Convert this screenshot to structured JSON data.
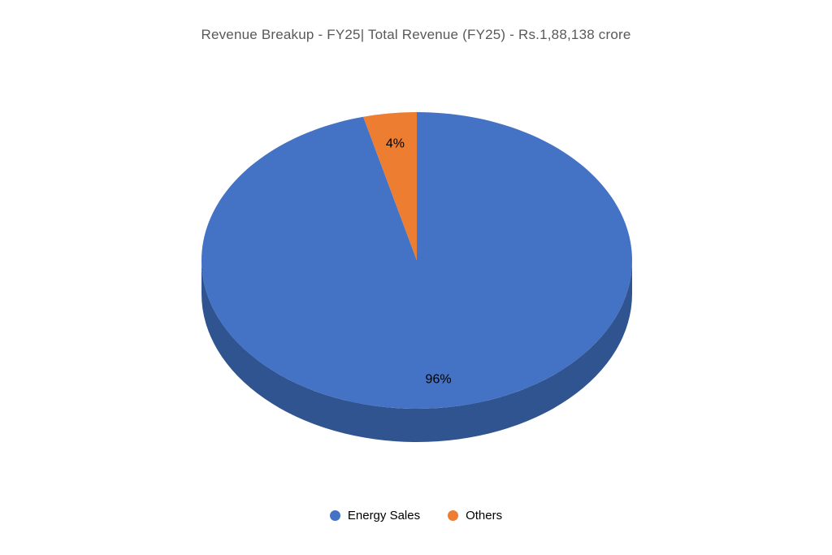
{
  "page": {
    "background": "#FFFFFF"
  },
  "chart_data": {
    "type": "pie",
    "style": "3d",
    "title": "Revenue Breakup - FY25| Total Revenue (FY25) - Rs.1,88,138 crore",
    "title_color": "#595959",
    "categories": [
      "Energy Sales",
      "Others"
    ],
    "values": [
      96,
      4
    ],
    "value_unit": "%",
    "data_labels": [
      "96%",
      "4%"
    ],
    "data_label_color": "#000000",
    "colors": [
      "#4472C4",
      "#ED7D31"
    ],
    "side_color": "#30548F",
    "start_angle_deg": 0,
    "direction": "clockwise",
    "grid": false,
    "legend_position": "bottom",
    "legend": [
      {
        "label": "Energy Sales",
        "color": "#4472C4"
      },
      {
        "label": "Others",
        "color": "#ED7D31"
      }
    ]
  }
}
